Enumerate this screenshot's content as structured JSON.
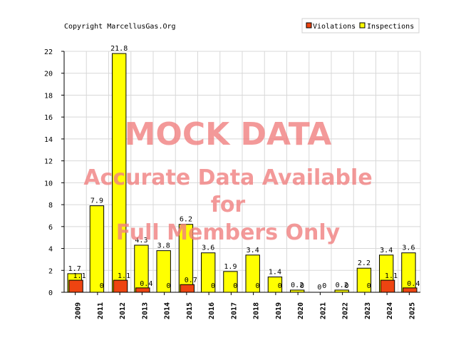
{
  "copyright": "Copyright MarcellusGas.Org",
  "watermark": {
    "line1": "MOCK DATA",
    "line2": "Accurate Data Available",
    "line3": "for",
    "line4": "Full Members Only"
  },
  "colors": {
    "violations": "#ee4411",
    "inspections": "#ffff00",
    "grid": "#d8d8d8",
    "watermark": "#f08080"
  },
  "chart_data": {
    "type": "bar",
    "categories": [
      "2009",
      "2011",
      "2012",
      "2013",
      "2014",
      "2015",
      "2016",
      "2017",
      "2018",
      "2019",
      "2020",
      "2021",
      "2022",
      "2023",
      "2024",
      "2025"
    ],
    "series": [
      {
        "name": "Violations",
        "values": [
          1.1,
          0,
          1.1,
          0.4,
          0,
          0.7,
          0,
          0,
          0,
          0,
          0,
          0,
          0,
          0,
          1.1,
          0.4
        ],
        "labels": [
          "1.1",
          "0",
          "1.1",
          "0.4",
          "0",
          "0.7",
          "0",
          "0",
          "0",
          "0",
          "0",
          "0",
          "0",
          "0",
          "1.1",
          "0.4"
        ]
      },
      {
        "name": "Inspections",
        "values": [
          1.7,
          7.9,
          21.8,
          4.3,
          3.8,
          6.2,
          3.6,
          1.9,
          3.4,
          1.4,
          0.2,
          0,
          0.2,
          2.2,
          3.4,
          3.6
        ],
        "labels": [
          "1.7",
          "7.9",
          "21.8",
          "4.3",
          "3.8",
          "6.2",
          "3.6",
          "1.9",
          "3.4",
          "1.4",
          "0.2",
          "0",
          "0.2",
          "2.2",
          "3.4",
          "3.6"
        ]
      }
    ],
    "yticks": [
      "0",
      "2",
      "4",
      "6",
      "8",
      "10",
      "12",
      "14",
      "16",
      "18",
      "20",
      "22"
    ],
    "ylim": [
      0,
      22
    ],
    "grid": true,
    "legend_position": "top-right"
  }
}
